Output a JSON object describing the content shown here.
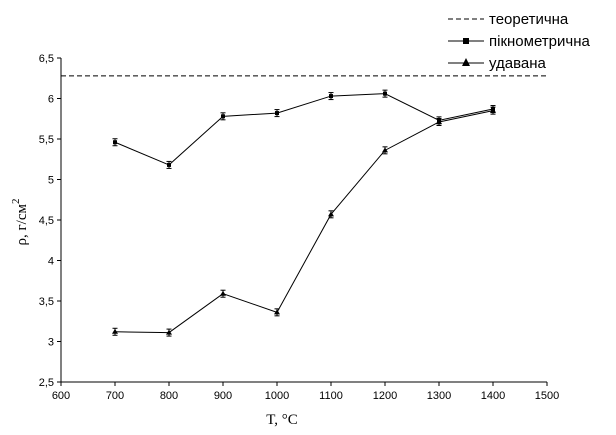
{
  "chart_data": {
    "type": "line",
    "xlabel": "T, °C",
    "ylabel_main": "ρ, г/см",
    "ylabel_sup": "2",
    "xlim": [
      600,
      1500
    ],
    "ylim": [
      2.5,
      6.5
    ],
    "x_ticks": [
      "600",
      "700",
      "800",
      "900",
      "1000",
      "1100",
      "1200",
      "1300",
      "1400",
      "1500"
    ],
    "y_ticks": [
      "2,5",
      "3",
      "3,5",
      "4",
      "4,5",
      "5",
      "5,5",
      "6",
      "6,5"
    ],
    "grid": false,
    "legend_position": "top-right",
    "reference_line": {
      "name": "теоретична",
      "value": 6.28,
      "style": "dashed"
    },
    "series": [
      {
        "name": "пікнометрична",
        "marker": "square",
        "x": [
          700,
          800,
          900,
          1000,
          1100,
          1200,
          1300,
          1400
        ],
        "y": [
          5.46,
          5.18,
          5.78,
          5.82,
          6.03,
          6.06,
          5.73,
          5.87
        ]
      },
      {
        "name": "удавана",
        "marker": "triangle",
        "x": [
          700,
          800,
          900,
          1000,
          1100,
          1200,
          1300,
          1400
        ],
        "y": [
          3.12,
          3.11,
          3.59,
          3.36,
          4.57,
          5.36,
          5.71,
          5.85
        ]
      }
    ]
  }
}
